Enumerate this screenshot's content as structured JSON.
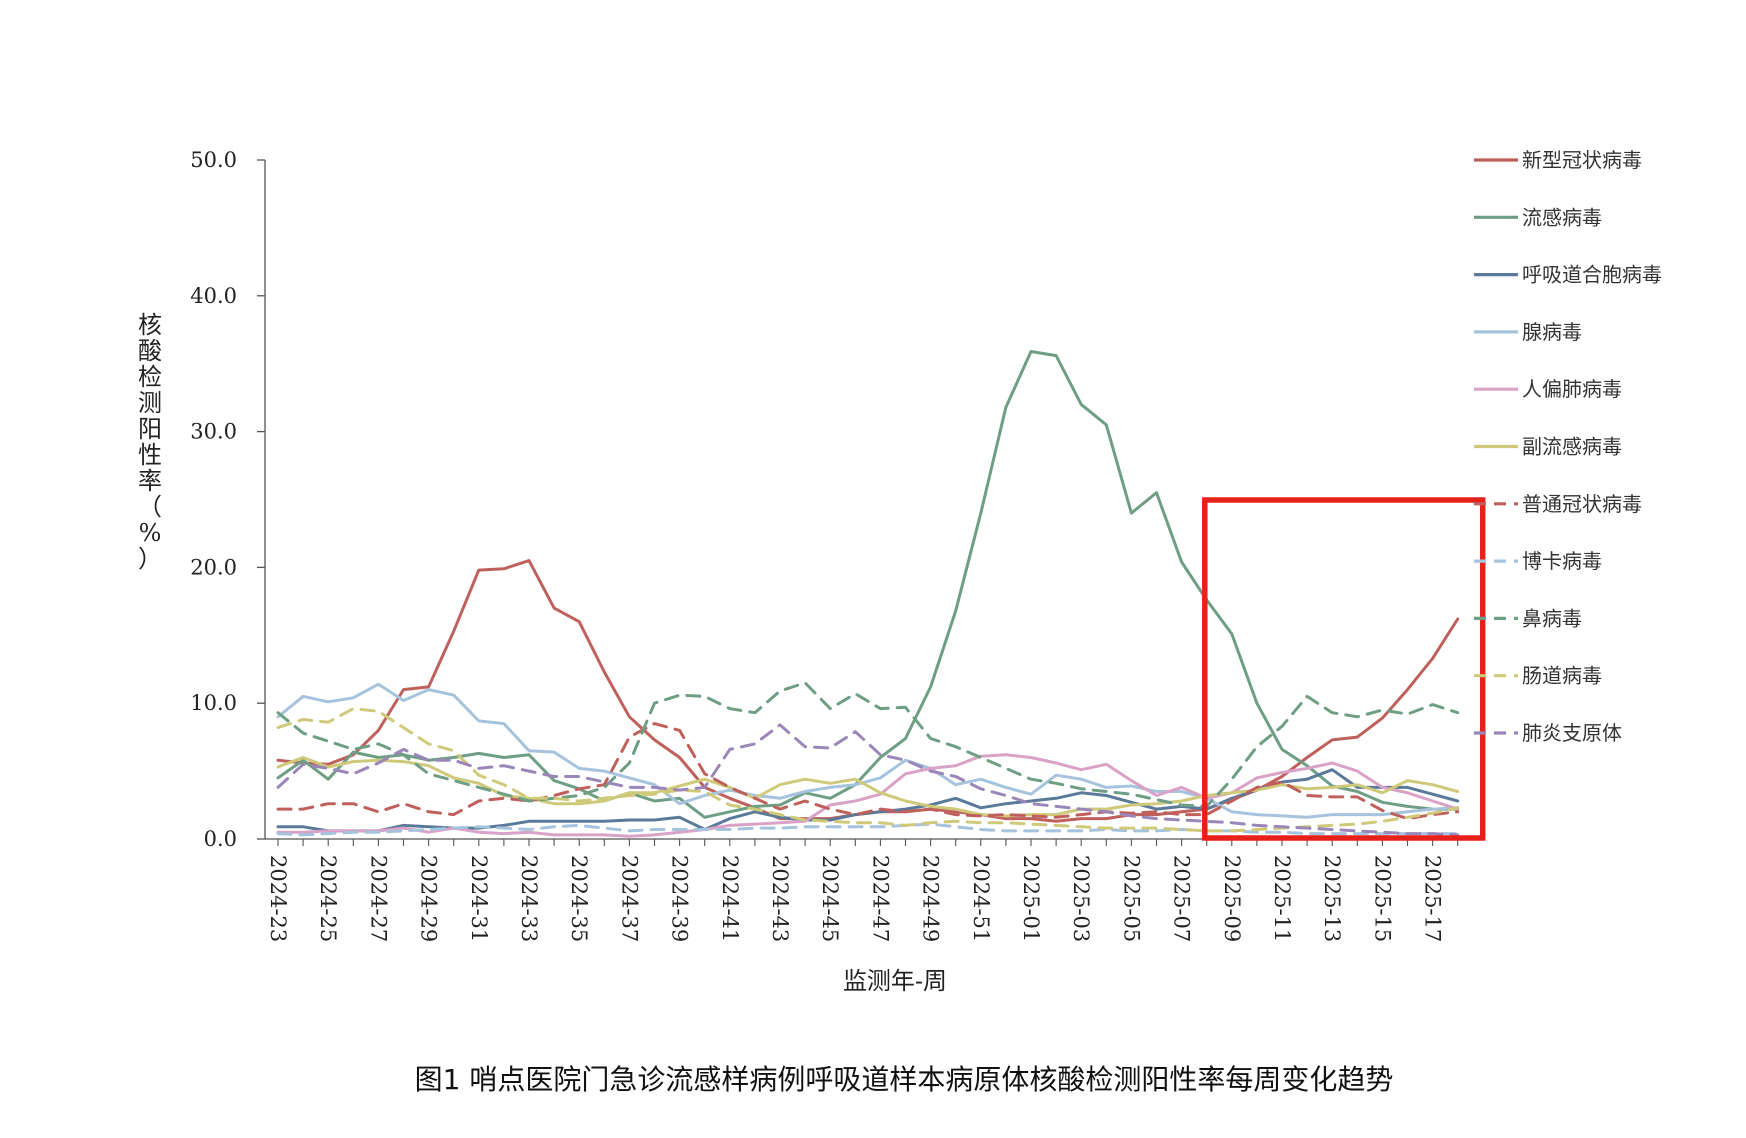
{
  "chart_data": {
    "type": "line",
    "title": "",
    "caption": "图1 哨点医院门急诊流感样病例呼吸道样本病原体核酸检测阳性率每周变化趋势",
    "xlabel": "监测年-周",
    "ylabel": "核酸检测阳性率（%）",
    "ylim": [
      0,
      50
    ],
    "yticks": [
      "0.0",
      "10.0",
      "20.0",
      "30.0",
      "40.0",
      "50.0"
    ],
    "x": [
      "2024-23",
      "2024-24",
      "2024-25",
      "2024-26",
      "2024-27",
      "2024-28",
      "2024-29",
      "2024-30",
      "2024-31",
      "2024-32",
      "2024-33",
      "2024-34",
      "2024-35",
      "2024-36",
      "2024-37",
      "2024-38",
      "2024-39",
      "2024-40",
      "2024-41",
      "2024-42",
      "2024-43",
      "2024-44",
      "2024-45",
      "2024-46",
      "2024-47",
      "2024-48",
      "2024-49",
      "2024-50",
      "2024-51",
      "2024-52",
      "2025-01",
      "2025-02",
      "2025-03",
      "2025-04",
      "2025-05",
      "2025-06",
      "2025-07",
      "2025-08",
      "2025-09",
      "2025-10",
      "2025-11",
      "2025-12",
      "2025-13",
      "2025-14",
      "2025-15",
      "2025-16",
      "2025-17",
      "2025-18"
    ],
    "xtick_labels": [
      "2024-23",
      "2024-25",
      "2024-27",
      "2024-29",
      "2024-31",
      "2024-33",
      "2024-35",
      "2024-37",
      "2024-39",
      "2024-41",
      "2024-43",
      "2024-45",
      "2024-47",
      "2024-49",
      "2024-51",
      "2025-01",
      "2025-03",
      "2025-05",
      "2025-07",
      "2025-09",
      "2025-11",
      "2025-13",
      "2025-15",
      "2025-17"
    ],
    "legend_position": "right",
    "grid": false,
    "highlight": {
      "from": "2025-09",
      "to": "2025-18",
      "color": "#e8201a"
    },
    "series": [
      {
        "name": "新型冠状病毒",
        "color": "#c0605c",
        "dash": false,
        "values": [
          5.8,
          5.6,
          5.5,
          6.2,
          8.0,
          11.0,
          11.2,
          15.3,
          19.8,
          19.9,
          20.5,
          17.0,
          16.0,
          12.3,
          9.0,
          7.3,
          6.0,
          3.8,
          3.0,
          2.3,
          1.5,
          1.5,
          1.5,
          1.8,
          2.0,
          2.0,
          2.2,
          2.0,
          1.8,
          1.5,
          1.5,
          1.3,
          1.5,
          1.5,
          1.8,
          1.8,
          2.0,
          2.2,
          2.9,
          3.6,
          4.6,
          6.0,
          7.3,
          7.5,
          8.9,
          11.0,
          13.3,
          16.2
        ]
      },
      {
        "name": "流感病毒",
        "color": "#6e9e84",
        "dash": false,
        "values": [
          4.5,
          5.8,
          4.4,
          6.4,
          6.0,
          6.2,
          5.8,
          6.0,
          6.3,
          6.0,
          6.2,
          4.3,
          3.7,
          2.8,
          3.4,
          2.8,
          3.0,
          1.6,
          2.0,
          2.4,
          2.5,
          3.4,
          3.0,
          4.0,
          6.0,
          7.4,
          11.2,
          16.8,
          24.0,
          31.8,
          35.9,
          35.6,
          32.0,
          30.5,
          24.0,
          25.5,
          20.4,
          17.6,
          15.1,
          10.0,
          6.6,
          5.4,
          3.9,
          3.5,
          2.7,
          2.4,
          2.2,
          2.2
        ]
      },
      {
        "name": "呼吸道合胞病毒",
        "color": "#5b7a9a",
        "dash": false,
        "values": [
          0.9,
          0.9,
          0.6,
          0.6,
          0.6,
          1.0,
          0.9,
          0.8,
          0.8,
          1.0,
          1.3,
          1.3,
          1.3,
          1.3,
          1.4,
          1.4,
          1.6,
          0.7,
          1.5,
          2.0,
          1.6,
          1.4,
          1.4,
          1.8,
          2.0,
          2.2,
          2.5,
          3.0,
          2.3,
          2.6,
          2.8,
          3.0,
          3.4,
          3.2,
          2.7,
          2.2,
          2.4,
          2.2,
          3.0,
          3.6,
          4.2,
          4.4,
          5.1,
          3.8,
          3.8,
          3.8,
          3.3,
          2.8
        ]
      },
      {
        "name": "腺病毒",
        "color": "#a6c3de",
        "dash": false,
        "values": [
          9.0,
          10.5,
          10.1,
          10.4,
          11.4,
          10.2,
          11.0,
          10.6,
          8.7,
          8.5,
          6.5,
          6.4,
          5.2,
          5.0,
          4.5,
          4.0,
          2.6,
          3.2,
          3.6,
          3.2,
          3.0,
          3.5,
          3.8,
          4.0,
          4.5,
          5.8,
          5.2,
          4.0,
          4.4,
          3.8,
          3.3,
          4.7,
          4.4,
          3.8,
          3.9,
          3.5,
          3.5,
          3.0,
          2.0,
          1.8,
          1.7,
          1.6,
          1.8,
          1.8,
          1.8,
          2.0,
          2.2,
          2.3
        ]
      },
      {
        "name": "人偏肺病毒",
        "color": "#d9a2c6",
        "dash": false,
        "values": [
          0.5,
          0.5,
          0.6,
          0.6,
          0.6,
          0.8,
          0.5,
          0.8,
          0.5,
          0.4,
          0.5,
          0.3,
          0.3,
          0.3,
          0.2,
          0.3,
          0.5,
          0.7,
          1.0,
          1.1,
          1.2,
          1.3,
          2.5,
          2.8,
          3.3,
          4.8,
          5.2,
          5.4,
          6.1,
          6.2,
          6.0,
          5.6,
          5.1,
          5.5,
          4.3,
          3.2,
          3.8,
          3.0,
          3.4,
          4.5,
          4.9,
          5.2,
          5.6,
          5.0,
          3.8,
          3.4,
          2.8,
          2.2
        ]
      },
      {
        "name": "副流感病毒",
        "color": "#cfc97a",
        "dash": false,
        "values": [
          5.3,
          6.0,
          5.3,
          5.7,
          5.8,
          5.7,
          5.4,
          4.5,
          4.1,
          3.2,
          3.0,
          2.6,
          2.6,
          2.8,
          3.4,
          3.4,
          3.9,
          4.4,
          3.8,
          3.0,
          4.0,
          4.4,
          4.1,
          4.4,
          3.4,
          2.8,
          2.4,
          2.2,
          1.8,
          1.7,
          1.8,
          1.8,
          2.2,
          2.2,
          2.5,
          2.6,
          2.8,
          3.2,
          3.4,
          3.6,
          4.0,
          3.7,
          3.8,
          4.0,
          3.4,
          4.3,
          4.0,
          3.5
        ]
      },
      {
        "name": "普通冠状病毒",
        "color": "#c0605c",
        "dash": true,
        "values": [
          2.2,
          2.2,
          2.6,
          2.6,
          2.0,
          2.6,
          2.0,
          1.8,
          2.8,
          3.0,
          2.8,
          3.2,
          3.7,
          4.0,
          7.5,
          8.5,
          8.0,
          4.8,
          3.8,
          3.0,
          2.2,
          2.8,
          2.2,
          1.8,
          2.2,
          2.0,
          2.2,
          1.8,
          1.7,
          1.8,
          1.7,
          1.6,
          1.8,
          2.0,
          1.9,
          2.0,
          1.8,
          1.8,
          2.8,
          3.8,
          4.2,
          3.2,
          3.1,
          3.1,
          2.1,
          1.5,
          1.8,
          2.0
        ]
      },
      {
        "name": "博卡病毒",
        "color": "#a6c3de",
        "dash": true,
        "values": [
          0.4,
          0.3,
          0.4,
          0.5,
          0.5,
          0.6,
          0.7,
          0.8,
          0.9,
          0.8,
          0.7,
          0.9,
          1.0,
          0.8,
          0.6,
          0.7,
          0.7,
          0.7,
          0.7,
          0.8,
          0.8,
          0.9,
          0.9,
          0.9,
          0.9,
          1.0,
          1.1,
          0.9,
          0.7,
          0.6,
          0.6,
          0.6,
          0.6,
          0.7,
          0.6,
          0.6,
          0.7,
          0.6,
          0.6,
          0.5,
          0.5,
          0.4,
          0.4,
          0.4,
          0.4,
          0.4,
          0.4,
          0.4
        ]
      },
      {
        "name": "鼻病毒",
        "color": "#6e9e84",
        "dash": true,
        "values": [
          9.3,
          7.8,
          7.2,
          6.6,
          7.0,
          6.2,
          4.8,
          4.3,
          3.8,
          3.3,
          2.8,
          3.0,
          3.2,
          3.8,
          5.6,
          10.0,
          10.6,
          10.5,
          9.6,
          9.3,
          10.9,
          11.5,
          9.6,
          10.7,
          9.6,
          9.7,
          7.4,
          6.8,
          6.0,
          5.2,
          4.4,
          4.1,
          3.7,
          3.5,
          3.3,
          2.9,
          2.5,
          2.4,
          4.4,
          6.8,
          8.3,
          10.5,
          9.3,
          9.0,
          9.5,
          9.2,
          9.9,
          9.3
        ]
      },
      {
        "name": "肠道病毒",
        "color": "#cfc97a",
        "dash": true,
        "values": [
          8.2,
          8.8,
          8.6,
          9.6,
          9.4,
          8.2,
          7.0,
          6.5,
          4.7,
          4.0,
          3.0,
          3.0,
          2.8,
          3.0,
          3.2,
          3.3,
          3.6,
          3.5,
          2.5,
          2.2,
          1.8,
          1.4,
          1.3,
          1.2,
          1.2,
          1.0,
          1.2,
          1.3,
          1.2,
          1.2,
          1.1,
          1.0,
          0.9,
          0.8,
          0.8,
          0.8,
          0.7,
          0.6,
          0.6,
          0.7,
          0.8,
          0.9,
          1.0,
          1.1,
          1.3,
          1.6,
          1.9,
          2.3
        ]
      },
      {
        "name": "肺炎支原体",
        "color": "#9a86b8",
        "dash": true,
        "values": [
          3.8,
          5.5,
          5.2,
          4.8,
          5.6,
          6.6,
          5.8,
          5.8,
          5.2,
          5.4,
          5.0,
          4.6,
          4.6,
          4.2,
          3.8,
          3.8,
          3.6,
          3.8,
          6.6,
          7.0,
          8.4,
          6.8,
          6.7,
          7.9,
          6.2,
          5.8,
          5.0,
          4.6,
          3.7,
          3.2,
          2.6,
          2.4,
          2.2,
          2.0,
          1.7,
          1.5,
          1.4,
          1.3,
          1.2,
          1.0,
          0.9,
          0.8,
          0.7,
          0.6,
          0.5,
          0.4,
          0.4,
          0.3
        ]
      }
    ]
  }
}
